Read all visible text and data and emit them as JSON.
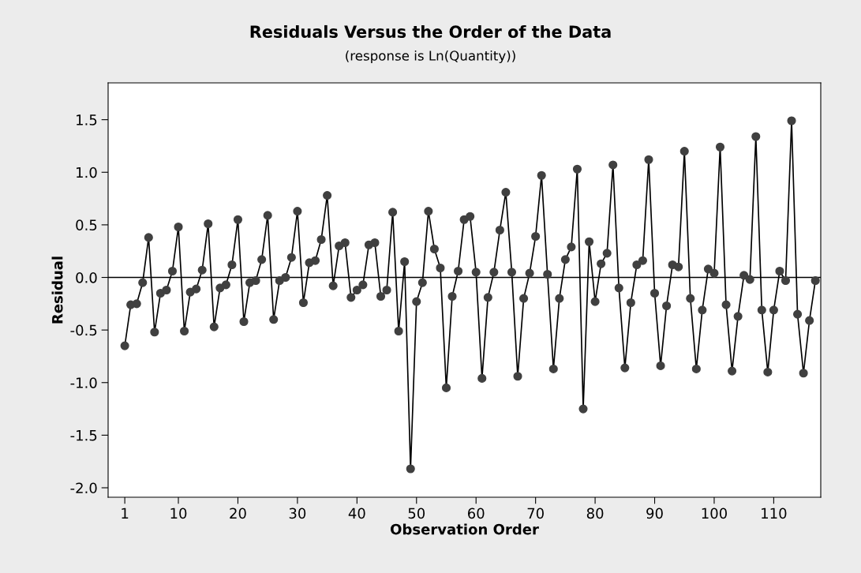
{
  "chart_data": {
    "type": "line",
    "title": "Residuals Versus the Order of the Data",
    "subtitle": "(response is Ln(Quantity))",
    "xlabel": "Observation Order",
    "ylabel": "Residual",
    "x": [
      1,
      2,
      3,
      4,
      5,
      6,
      7,
      8,
      9,
      10,
      11,
      12,
      13,
      14,
      15,
      16,
      17,
      18,
      19,
      20,
      21,
      22,
      23,
      24,
      25,
      26,
      27,
      28,
      29,
      30,
      31,
      32,
      33,
      34,
      35,
      36,
      37,
      38,
      39,
      40,
      41,
      42,
      43,
      44,
      45,
      46,
      47,
      48,
      49,
      50,
      51,
      52,
      53,
      54,
      55,
      56,
      57,
      58,
      59,
      60,
      61,
      62,
      63,
      64,
      65,
      66,
      67,
      68,
      69,
      70,
      71,
      72,
      73,
      74,
      75,
      76,
      77,
      78,
      79,
      80,
      81,
      82,
      83,
      84,
      85,
      86,
      87,
      88,
      89,
      90,
      91,
      92,
      93,
      94,
      95,
      96,
      97,
      98,
      99,
      100,
      101,
      102,
      103,
      104,
      105,
      106,
      107,
      108,
      109,
      110,
      111,
      112,
      113,
      114,
      115,
      116,
      117
    ],
    "series": [
      {
        "color": "#404040",
        "values": [
          -0.65,
          -0.26,
          -0.25,
          -0.05,
          0.38,
          -0.52,
          -0.15,
          -0.12,
          0.06,
          0.48,
          -0.51,
          -0.14,
          -0.11,
          0.07,
          0.51,
          -0.47,
          -0.1,
          -0.07,
          0.12,
          0.55,
          -0.42,
          -0.05,
          -0.03,
          0.17,
          0.59,
          -0.4,
          -0.03,
          0.0,
          0.19,
          0.63,
          -0.24,
          0.14,
          0.16,
          0.36,
          0.78,
          -0.08,
          0.3,
          0.33,
          -0.19,
          -0.12,
          -0.07,
          0.31,
          0.33,
          -0.18,
          -0.12,
          0.62,
          -0.51,
          0.15,
          -1.82,
          -0.23,
          -0.05,
          0.63,
          0.27,
          0.09,
          -1.05,
          -0.18,
          0.06,
          0.55,
          0.58,
          0.05,
          -0.96,
          -0.19,
          0.05,
          0.45,
          0.81,
          0.05,
          -0.94,
          -0.2,
          0.04,
          0.39,
          0.97,
          0.03,
          -0.87,
          -0.2,
          0.17,
          0.29,
          1.03,
          -1.25,
          0.34,
          -0.23,
          0.13,
          0.23,
          1.07,
          -0.1,
          -0.86,
          -0.24,
          0.12,
          0.16,
          1.12,
          -0.15,
          -0.84,
          -0.27,
          0.12,
          0.1,
          1.2,
          -0.2,
          -0.87,
          -0.31,
          0.08,
          0.04,
          1.24,
          -0.26,
          -0.89,
          -0.37,
          0.02,
          -0.02,
          1.34,
          -0.31,
          -0.9,
          -0.31,
          0.06,
          -0.03,
          1.49,
          -0.35,
          -0.91,
          -0.41,
          -0.03
        ]
      }
    ],
    "xlim": [
      -1.8,
      117.9
    ],
    "ylim": [
      -2.09,
      1.85
    ],
    "xticks": [
      1,
      10,
      20,
      30,
      40,
      50,
      60,
      70,
      80,
      90,
      100,
      110
    ],
    "yticks": [
      {
        "value": -2.0,
        "label": "-2.0"
      },
      {
        "value": -1.5,
        "label": "-1.5"
      },
      {
        "value": -1.0,
        "label": "-1.0"
      },
      {
        "value": -0.5,
        "label": "-0.5"
      },
      {
        "value": 0.0,
        "label": "0.0"
      },
      {
        "value": 0.5,
        "label": "0.5"
      },
      {
        "value": 1.0,
        "label": "1.0"
      },
      {
        "value": 1.5,
        "label": "1.5"
      }
    ],
    "ref_lines": [
      {
        "axis": "y",
        "value": 0,
        "color": "#000000",
        "line_style": "solid"
      }
    ],
    "marker": "circle",
    "line_style": "solid",
    "grid": false,
    "legend": false
  }
}
